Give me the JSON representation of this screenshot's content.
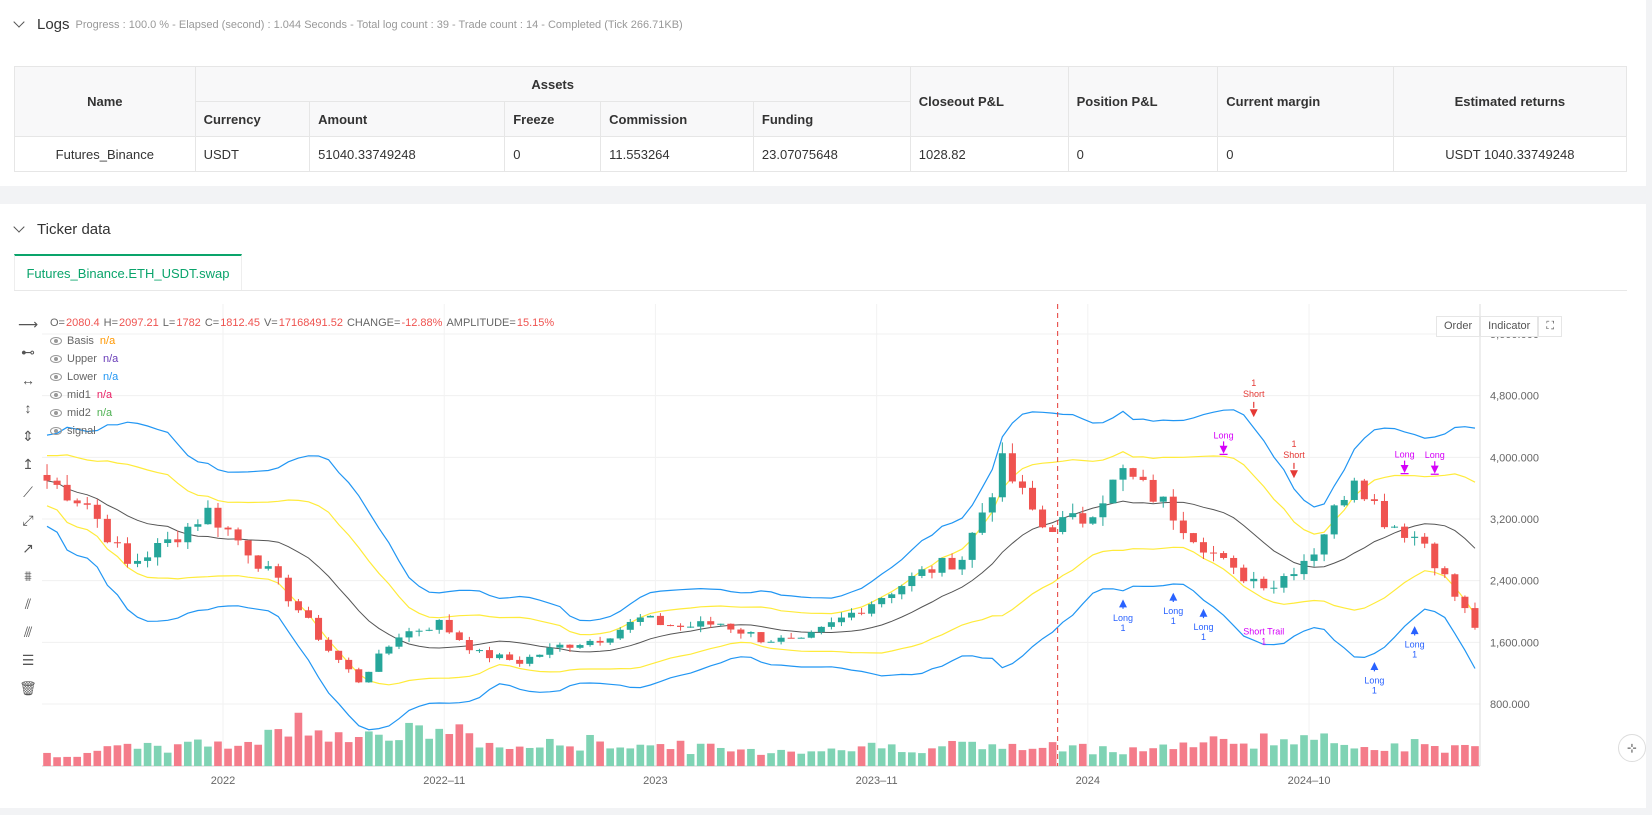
{
  "logs": {
    "title": "Logs",
    "summary": "Progress : 100.0 % - Elapsed (second) : 1.044  Seconds - Total log count : 39 - Trade count : 14 - Completed (Tick 266.71KB)"
  },
  "assets_table": {
    "group_header": "Assets",
    "headers": [
      "Name",
      "Currency",
      "Amount",
      "Freeze",
      "Commission",
      "Funding",
      "Closeout P&L",
      "Position P&L",
      "Current margin",
      "Estimated returns"
    ],
    "row": [
      "Futures_Binance",
      "USDT",
      "51040.33749248",
      "0",
      "11.553264",
      "23.07075648",
      "1028.82",
      "0",
      "0",
      "USDT 1040.33749248"
    ]
  },
  "ticker": {
    "title": "Ticker data",
    "tab_label": "Futures_Binance.ETH_USDT.swap"
  },
  "legend": {
    "o_label": "O=",
    "o_val": "2080.4",
    "h_label": "H=",
    "h_val": "2097.21",
    "l_label": "L=",
    "l_val": "1782",
    "c_label": "C=",
    "c_val": "1812.45",
    "v_label": "V=",
    "v_val": "17168491.52",
    "change_label": "CHANGE=",
    "change_val": "-12.88%",
    "amp_label": "AMPLITUDE=",
    "amp_val": "15.15%",
    "series": [
      {
        "name": "Basis",
        "value": "n/a",
        "color": "#ff9800"
      },
      {
        "name": "Upper",
        "value": "n/a",
        "color": "#673ab7"
      },
      {
        "name": "Lower",
        "value": "n/a",
        "color": "#2196f3"
      },
      {
        "name": "mid1",
        "value": "n/a",
        "color": "#e91e63"
      },
      {
        "name": "mid2",
        "value": "n/a",
        "color": "#4caf50"
      },
      {
        "name": "signal",
        "value": "",
        "color": "#999999"
      }
    ]
  },
  "chart_buttons": {
    "order": "Order",
    "indicator": "Indicator"
  },
  "colors": {
    "up": "#26a69a",
    "down": "#ef5350",
    "upper": "#2196f3",
    "inner": "#ffeb3b",
    "basis": "#555555",
    "long": "#2962ff",
    "short": "#e53935",
    "signal": "#d500f9"
  },
  "chart_data": {
    "type": "candlestick",
    "y_ticks": [
      "5,600.000",
      "4,800.000",
      "4,000.000",
      "3,200.000",
      "2,400.000",
      "1,600.000",
      "800.000"
    ],
    "y_tick_values": [
      5600,
      4800,
      4000,
      3200,
      2400,
      1600,
      800
    ],
    "x_ticks": [
      "2022",
      "2022–11",
      "2023",
      "2023–11",
      "2024",
      "2024–10"
    ],
    "price_anchors": [
      [
        0,
        3700
      ],
      [
        4,
        3400
      ],
      [
        8,
        2600
      ],
      [
        12,
        2900
      ],
      [
        16,
        3300
      ],
      [
        20,
        2800
      ],
      [
        24,
        2200
      ],
      [
        28,
        1500
      ],
      [
        31,
        1100
      ],
      [
        35,
        1700
      ],
      [
        39,
        1850
      ],
      [
        43,
        1450
      ],
      [
        47,
        1350
      ],
      [
        51,
        1550
      ],
      [
        55,
        1650
      ],
      [
        59,
        1900
      ],
      [
        63,
        1800
      ],
      [
        67,
        1850
      ],
      [
        71,
        1650
      ],
      [
        75,
        1600
      ],
      [
        79,
        1900
      ],
      [
        83,
        2200
      ],
      [
        87,
        2500
      ],
      [
        91,
        2700
      ],
      [
        95,
        3900
      ],
      [
        99,
        3100
      ],
      [
        103,
        3200
      ],
      [
        107,
        3800
      ],
      [
        111,
        3400
      ],
      [
        114,
        3000
      ],
      [
        118,
        2500
      ],
      [
        122,
        2350
      ],
      [
        126,
        2800
      ],
      [
        130,
        3800
      ],
      [
        133,
        3200
      ],
      [
        137,
        2900
      ],
      [
        140,
        2200
      ],
      [
        142,
        1812
      ]
    ],
    "volume_anchors": [
      [
        0,
        0.2
      ],
      [
        20,
        0.4
      ],
      [
        25,
        0.7
      ],
      [
        32,
        0.5
      ],
      [
        40,
        0.6
      ],
      [
        45,
        0.3
      ],
      [
        55,
        0.4
      ],
      [
        60,
        0.35
      ],
      [
        70,
        0.25
      ],
      [
        80,
        0.3
      ],
      [
        90,
        0.35
      ],
      [
        97,
        0.3
      ],
      [
        110,
        0.3
      ],
      [
        120,
        0.45
      ],
      [
        128,
        0.4
      ],
      [
        135,
        0.35
      ],
      [
        142,
        0.3
      ]
    ],
    "signals": [
      {
        "type": "Long",
        "qty": "1",
        "index": 107
      },
      {
        "type": "Long",
        "qty": "1",
        "index": 112
      },
      {
        "type": "Long",
        "qty": "1",
        "index": 115
      },
      {
        "type": "Short",
        "qty": "1",
        "index": 120
      },
      {
        "type": "Short",
        "qty": "1",
        "index": 124
      },
      {
        "type": "Short Trail",
        "qty": "1",
        "index": 121
      },
      {
        "type": "Long",
        "qty": "1",
        "index": 132
      },
      {
        "type": "Long",
        "qty": "1",
        "index": 136
      }
    ],
    "signal_labels_top": [
      "Long",
      "Long",
      "Long"
    ]
  }
}
